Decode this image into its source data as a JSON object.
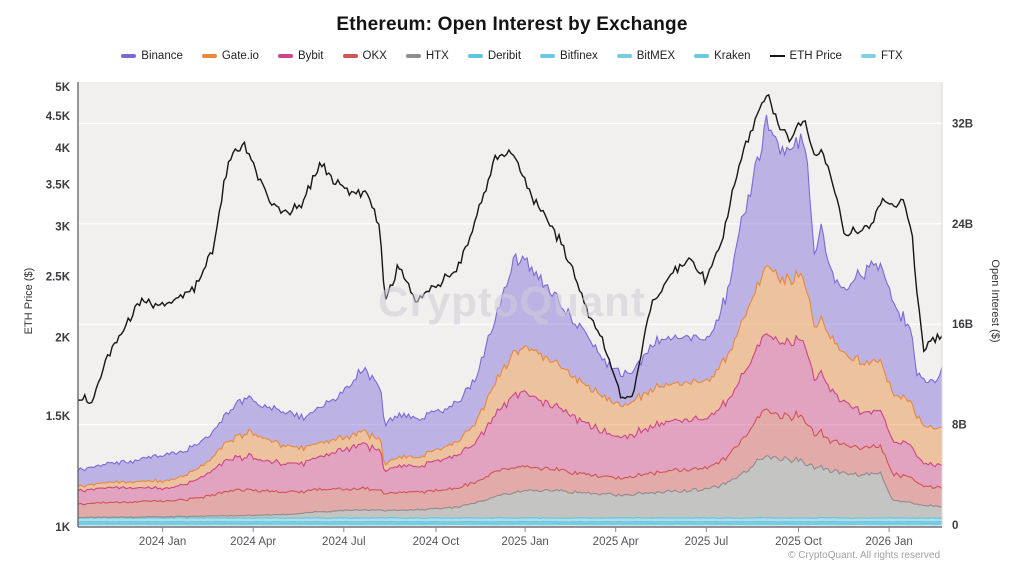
{
  "ui": {
    "title": "Ethereum: Open Interest by Exchange",
    "watermark": "CryptoQuant",
    "footer": "© CryptoQuant. All rights reserved",
    "colors": {
      "page_bg": "#ffffff",
      "plot_bg": "#f1f0ee",
      "grid": "#ffffff",
      "spine": "#56555a",
      "tick_text": "#3c3c40",
      "price_line": "#161616"
    }
  },
  "chart_data": {
    "type": "area",
    "stacked": true,
    "title": "Ethereum: Open Interest by Exchange",
    "xlabel": "",
    "x": {
      "domain_months": 28.6,
      "note_first": "2023 Oct",
      "note_last": "2026 Feb"
    },
    "x_ticks": {
      "months": [
        2.8,
        5.8,
        8.8,
        11.85,
        14.8,
        17.8,
        20.8,
        23.85,
        26.85
      ],
      "labels": [
        "2024 Jan",
        "2024 Apr",
        "2024 Jul",
        "2024 Oct",
        "2025 Jan",
        "2025 Apr",
        "2025 Jul",
        "2025 Oct",
        "2026 Jan"
      ]
    },
    "y_left": {
      "label": "ETH Price ($)",
      "scale": "log",
      "domain_k": [
        1,
        5
      ],
      "tick_values_k": [
        1,
        1.5,
        2,
        2.5,
        3,
        3.5,
        4,
        4.5,
        5
      ],
      "tick_labels": [
        "1K",
        "1.5K",
        "2K",
        "2.5K",
        "3K",
        "3.5K",
        "4K",
        "4.5K",
        "5K"
      ]
    },
    "y_right": {
      "label": "Open Interest ($)",
      "scale": "linear",
      "tick_values_b": [
        0,
        8,
        16,
        24,
        32
      ],
      "tick_labels": [
        "0",
        "8B",
        "16B",
        "24B",
        "32B"
      ]
    },
    "grid_months": [
      0,
      0.5,
      1,
      1.5,
      2,
      2.5,
      3,
      3.5,
      4,
      4.5,
      5,
      5.5,
      6,
      6.5,
      7,
      7.5,
      8,
      8.5,
      9,
      9.5,
      10,
      10.15,
      10.6,
      11.2,
      12,
      12.6,
      13.2,
      13.8,
      14.4,
      15,
      15.6,
      16.2,
      16.8,
      17.4,
      18,
      18.4,
      19,
      19.6,
      20.2,
      20.8,
      21.4,
      22,
      22.4,
      22.8,
      23.2,
      23.6,
      24,
      24.15,
      24.35,
      24.6,
      25,
      25.4,
      25.8,
      26.2,
      26.6,
      26.95,
      27.3,
      27.6,
      27.75,
      28,
      28.3,
      28.6
    ],
    "series": [
      {
        "name": "FTX",
        "color": "#7fd0e5",
        "jitter": 0.12,
        "values": 0.02
      },
      {
        "name": "Kraken",
        "color": "#68c9e0",
        "jitter": 0.15,
        "values": 0.07
      },
      {
        "name": "BitMEX",
        "color": "#74cbe2",
        "jitter": 0.15,
        "values": 0.1
      },
      {
        "name": "Bitfinex",
        "color": "#6cc8e0",
        "jitter": 0.15,
        "values": 0.07
      },
      {
        "name": "Deribit",
        "color": "#5fc6de",
        "jitter": 0.12,
        "values": 0.3
      },
      {
        "name": "HTX",
        "color": "#8f8d8d",
        "jitter": 0.07,
        "values": [
          0.05,
          0.05,
          0.06,
          0.07,
          0.08,
          0.09,
          0.1,
          0.12,
          0.14,
          0.16,
          0.18,
          0.2,
          0.22,
          0.25,
          0.3,
          0.4,
          0.5,
          0.55,
          0.62,
          0.65,
          0.62,
          0.55,
          0.6,
          0.65,
          0.75,
          0.9,
          1.2,
          1.7,
          2.0,
          2.2,
          2.2,
          2.1,
          2.0,
          1.9,
          1.8,
          1.85,
          2.0,
          2.1,
          2.2,
          2.2,
          2.7,
          3.6,
          4.3,
          4.95,
          4.7,
          4.6,
          4.5,
          4.4,
          3.9,
          4.0,
          3.7,
          3.5,
          3.45,
          3.5,
          3.5,
          1.4,
          1.3,
          1.25,
          1.1,
          1.0,
          0.95,
          0.9
        ]
      },
      {
        "name": "OKX",
        "color": "#d15454",
        "jitter": 0.08,
        "values": [
          1.05,
          1.1,
          1.15,
          1.18,
          1.22,
          1.25,
          1.28,
          1.35,
          1.5,
          1.7,
          1.95,
          2.05,
          1.95,
          1.85,
          1.8,
          1.75,
          1.8,
          1.75,
          1.7,
          1.75,
          1.6,
          1.35,
          1.45,
          1.4,
          1.45,
          1.5,
          1.7,
          1.95,
          2.0,
          1.85,
          1.7,
          1.6,
          1.5,
          1.45,
          1.35,
          1.4,
          1.55,
          1.65,
          1.7,
          1.65,
          2.0,
          2.7,
          3.2,
          3.8,
          3.5,
          3.45,
          3.4,
          3.3,
          2.6,
          2.7,
          2.4,
          2.25,
          2.2,
          2.15,
          2.2,
          2.1,
          2.05,
          2.0,
          1.7,
          1.55,
          1.5,
          1.5
        ]
      },
      {
        "name": "Bybit",
        "color": "#cf4488",
        "jitter": 0.09,
        "values": [
          1.05,
          1.1,
          1.2,
          1.15,
          1.1,
          1.05,
          1.0,
          1.2,
          1.5,
          2.0,
          2.5,
          2.7,
          2.5,
          2.3,
          2.2,
          2.3,
          2.6,
          2.9,
          3.3,
          3.5,
          3.2,
          1.8,
          2.1,
          2.0,
          2.4,
          2.6,
          3.2,
          4.6,
          5.6,
          5.7,
          5.2,
          4.7,
          4.1,
          3.6,
          3.1,
          3.3,
          3.7,
          3.9,
          4.0,
          3.8,
          4.3,
          5.2,
          5.7,
          6.2,
          5.8,
          5.9,
          5.8,
          5.6,
          4.4,
          4.6,
          3.9,
          3.4,
          3.1,
          2.8,
          2.8,
          2.7,
          2.6,
          2.55,
          2.1,
          1.85,
          1.75,
          1.75
        ]
      },
      {
        "name": "Gate.io",
        "color": "#e8893c",
        "jitter": 0.09,
        "values": [
          0.35,
          0.38,
          0.42,
          0.45,
          0.5,
          0.55,
          0.62,
          0.7,
          0.85,
          1.1,
          1.5,
          1.8,
          1.95,
          1.6,
          1.4,
          1.2,
          1.1,
          1.0,
          0.95,
          1.0,
          0.9,
          0.55,
          0.7,
          0.75,
          0.9,
          1.1,
          1.6,
          2.6,
          3.3,
          3.8,
          3.6,
          3.3,
          3.0,
          2.8,
          2.55,
          2.7,
          2.9,
          3.0,
          3.05,
          2.95,
          3.4,
          4.3,
          4.8,
          5.3,
          5.0,
          5.1,
          5.0,
          4.9,
          4.1,
          4.3,
          4.1,
          3.9,
          3.95,
          3.9,
          4.0,
          3.8,
          3.6,
          3.5,
          3.2,
          3.0,
          2.9,
          3.0
        ]
      },
      {
        "name": "Binance",
        "color": "#7d68d8",
        "jitter": 0.09,
        "values": [
          1.34,
          1.41,
          1.51,
          1.59,
          1.74,
          2.0,
          2.04,
          1.97,
          1.95,
          1.98,
          2.31,
          2.79,
          2.52,
          2.64,
          2.64,
          2.39,
          2.84,
          3.24,
          4.17,
          5.04,
          4.12,
          3.29,
          3.39,
          3.14,
          2.94,
          3.14,
          3.54,
          5.09,
          7.44,
          6.49,
          5.34,
          4.74,
          4.14,
          2.89,
          2.54,
          2.39,
          3.49,
          3.69,
          3.69,
          3.14,
          4.54,
          8.24,
          9.64,
          11.19,
          10.04,
          10.59,
          10.54,
          10.14,
          6.04,
          7.04,
          5.14,
          5.09,
          6.84,
          7.59,
          7.84,
          7.44,
          6.39,
          5.94,
          3.34,
          3.64,
          3.64,
          4.49
        ]
      }
    ],
    "price_line": {
      "name": "ETH Price",
      "color": "#161616",
      "unit": "K$",
      "jitter": 0.022,
      "values": [
        1.62,
        1.57,
        1.88,
        2.05,
        2.28,
        2.25,
        2.28,
        2.32,
        2.45,
        2.8,
        3.85,
        4.05,
        3.55,
        3.25,
        3.15,
        3.3,
        3.8,
        3.55,
        3.4,
        3.4,
        3.0,
        2.25,
        2.6,
        2.3,
        2.45,
        2.6,
        3.1,
        3.85,
        3.95,
        3.35,
        3.05,
        2.7,
        2.25,
        1.95,
        1.6,
        1.62,
        2.25,
        2.5,
        2.7,
        2.45,
        2.95,
        3.95,
        4.4,
        4.85,
        4.35,
        4.15,
        4.45,
        4.25,
        3.9,
        4.0,
        3.45,
        2.9,
        2.95,
        3.0,
        3.3,
        3.25,
        3.3,
        2.95,
        2.35,
        1.92,
        2.0,
        2.02
      ]
    },
    "legend_order": [
      "Binance",
      "Gate.io",
      "Bybit",
      "OKX",
      "HTX",
      "Deribit",
      "Bitfinex",
      "BitMEX",
      "Kraken",
      "ETH Price",
      "FTX"
    ]
  }
}
